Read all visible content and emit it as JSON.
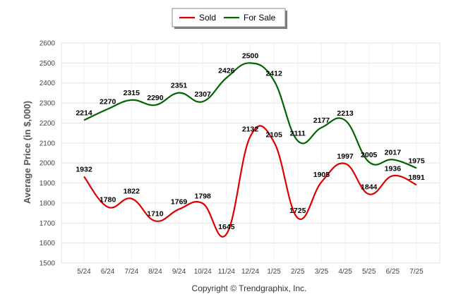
{
  "chart_data": {
    "type": "line",
    "categories": [
      "5/24",
      "6/24",
      "7/24",
      "8/24",
      "9/24",
      "10/24",
      "11/24",
      "12/24",
      "1/25",
      "2/25",
      "3/25",
      "4/25",
      "5/25",
      "6/25",
      "7/25"
    ],
    "series": [
      {
        "name": "Sold",
        "color": "#dd0000",
        "values": [
          1932,
          1780,
          1822,
          1710,
          1769,
          1798,
          1645,
          2132,
          2105,
          1725,
          1905,
          1997,
          1844,
          1936,
          1891
        ]
      },
      {
        "name": "For Sale",
        "color": "#006400",
        "values": [
          2214,
          2270,
          2315,
          2290,
          2351,
          2307,
          2426,
          2500,
          2412,
          2111,
          2177,
          2213,
          2005,
          2017,
          1975
        ]
      }
    ],
    "ylabel": "Average Price (in $,000)",
    "ylim": [
      1500,
      2600
    ],
    "yticks": [
      1500,
      1600,
      1700,
      1800,
      1900,
      2000,
      2100,
      2200,
      2300,
      2400,
      2500,
      2600
    ],
    "grid": true,
    "legend_position": "top-center"
  },
  "footer": "Copyright © Trendgraphix, Inc."
}
